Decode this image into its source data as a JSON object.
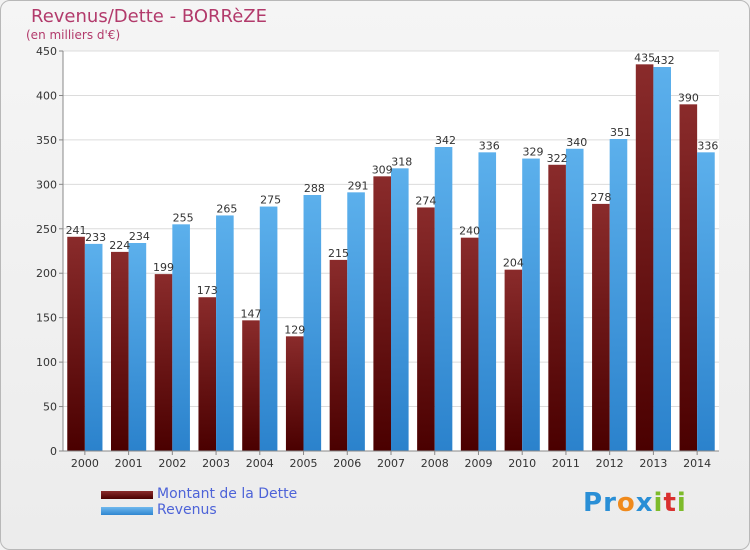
{
  "header": {
    "title": "Revenus/Dette - BORRèZE",
    "subtitle": "(en milliers d'€)"
  },
  "legend": {
    "debt_label": "Montant de la Dette",
    "revenue_label": "Revenus"
  },
  "logo": {
    "letters": [
      "P",
      "r",
      "o",
      "x",
      "i",
      "t",
      "i"
    ],
    "colors": [
      "#2a8fd6",
      "#2a8fd6",
      "#f08a1c",
      "#2a8fd6",
      "#7dbb2a",
      "#d9302f",
      "#7dbb2a"
    ]
  },
  "colors": {
    "debt": "#6b1a1a",
    "revenue": "#4aa3e3",
    "title": "#b23a6b",
    "legend_text": "#4d63d8"
  },
  "chart_data": {
    "type": "bar",
    "title": "Revenus/Dette - BORRèZE",
    "subtitle": "(en milliers d'€)",
    "categories": [
      "2000",
      "2001",
      "2002",
      "2003",
      "2004",
      "2005",
      "2006",
      "2007",
      "2008",
      "2009",
      "2010",
      "2011",
      "2012",
      "2013",
      "2014"
    ],
    "series": [
      {
        "name": "Montant de la Dette",
        "values": [
          241,
          224,
          199,
          173,
          147,
          129,
          215,
          309,
          274,
          240,
          204,
          322,
          278,
          435,
          390
        ]
      },
      {
        "name": "Revenus",
        "values": [
          233,
          234,
          255,
          265,
          275,
          288,
          291,
          318,
          342,
          336,
          329,
          340,
          351,
          432,
          336
        ]
      }
    ],
    "ylim": [
      0,
      450
    ],
    "yticks": [
      0,
      50,
      100,
      150,
      200,
      250,
      300,
      350,
      400,
      450
    ],
    "grid": true,
    "legend_position": "bottom-left"
  }
}
